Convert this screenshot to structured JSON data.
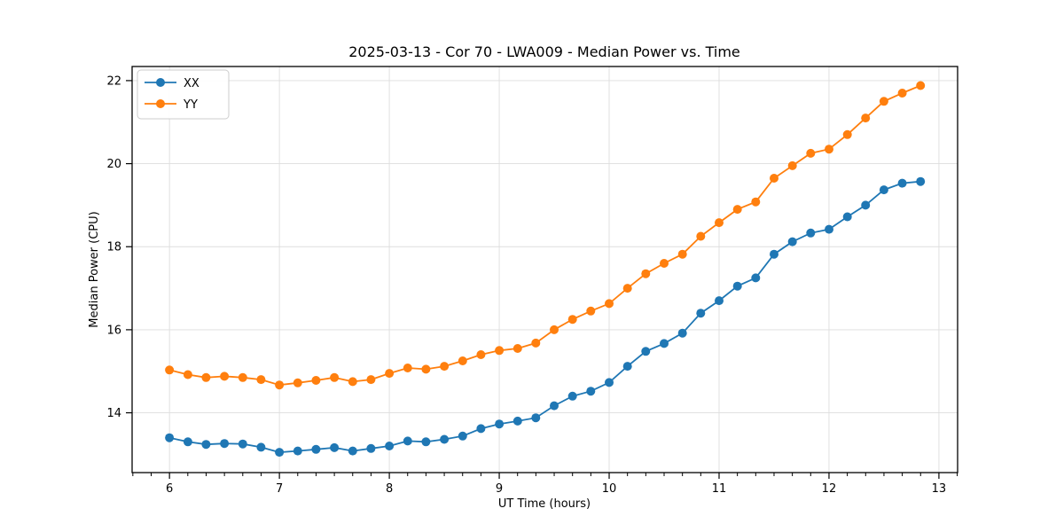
{
  "chart_data": {
    "type": "line",
    "title": "2025-03-13 - Cor 70 - LWA009 - Median Power vs. Time",
    "xlabel": "UT Time (hours)",
    "ylabel": "Median Power (CPU)",
    "xlim": [
      5.66,
      13.17
    ],
    "ylim": [
      12.56,
      22.34
    ],
    "xticks": [
      6,
      7,
      8,
      9,
      10,
      11,
      12,
      13
    ],
    "yticks": [
      14,
      16,
      18,
      20,
      22
    ],
    "grid": true,
    "legend_position": "upper-left",
    "minor_tick_interval_x": 0.1667,
    "x": [
      6.0,
      6.167,
      6.333,
      6.5,
      6.667,
      6.833,
      7.0,
      7.167,
      7.333,
      7.5,
      7.667,
      7.833,
      8.0,
      8.167,
      8.333,
      8.5,
      8.667,
      8.833,
      9.0,
      9.167,
      9.333,
      9.5,
      9.667,
      9.833,
      10.0,
      10.167,
      10.333,
      10.5,
      10.667,
      10.833,
      11.0,
      11.167,
      11.333,
      11.5,
      11.667,
      11.833,
      12.0,
      12.167,
      12.333,
      12.5,
      12.667,
      12.833
    ],
    "series": [
      {
        "name": "XX",
        "color": "#1f77b4",
        "marker": "circle",
        "values": [
          13.4,
          13.3,
          13.24,
          13.26,
          13.25,
          13.17,
          13.05,
          13.08,
          13.12,
          13.16,
          13.08,
          13.14,
          13.2,
          13.32,
          13.3,
          13.36,
          13.44,
          13.62,
          13.73,
          13.8,
          13.88,
          14.17,
          14.4,
          14.52,
          14.73,
          15.12,
          15.48,
          15.67,
          15.92,
          16.4,
          16.7,
          17.05,
          17.25,
          17.82,
          18.12,
          18.33,
          18.42,
          18.72,
          19.0,
          19.37,
          19.53,
          19.57
        ]
      },
      {
        "name": "YY",
        "color": "#ff7f0e",
        "marker": "circle",
        "values": [
          15.03,
          14.92,
          14.85,
          14.88,
          14.85,
          14.8,
          14.67,
          14.72,
          14.78,
          14.85,
          14.75,
          14.8,
          14.95,
          15.08,
          15.05,
          15.12,
          15.25,
          15.4,
          15.5,
          15.55,
          15.68,
          16.0,
          16.25,
          16.45,
          16.63,
          17.0,
          17.35,
          17.6,
          17.82,
          18.25,
          18.58,
          18.9,
          19.08,
          19.65,
          19.95,
          20.25,
          20.35,
          20.7,
          21.1,
          21.5,
          21.7,
          21.88
        ]
      }
    ],
    "colors": {
      "grid": "#dddddd",
      "spine": "#000000",
      "background": "#ffffff",
      "legend_border": "#cccccc"
    }
  }
}
